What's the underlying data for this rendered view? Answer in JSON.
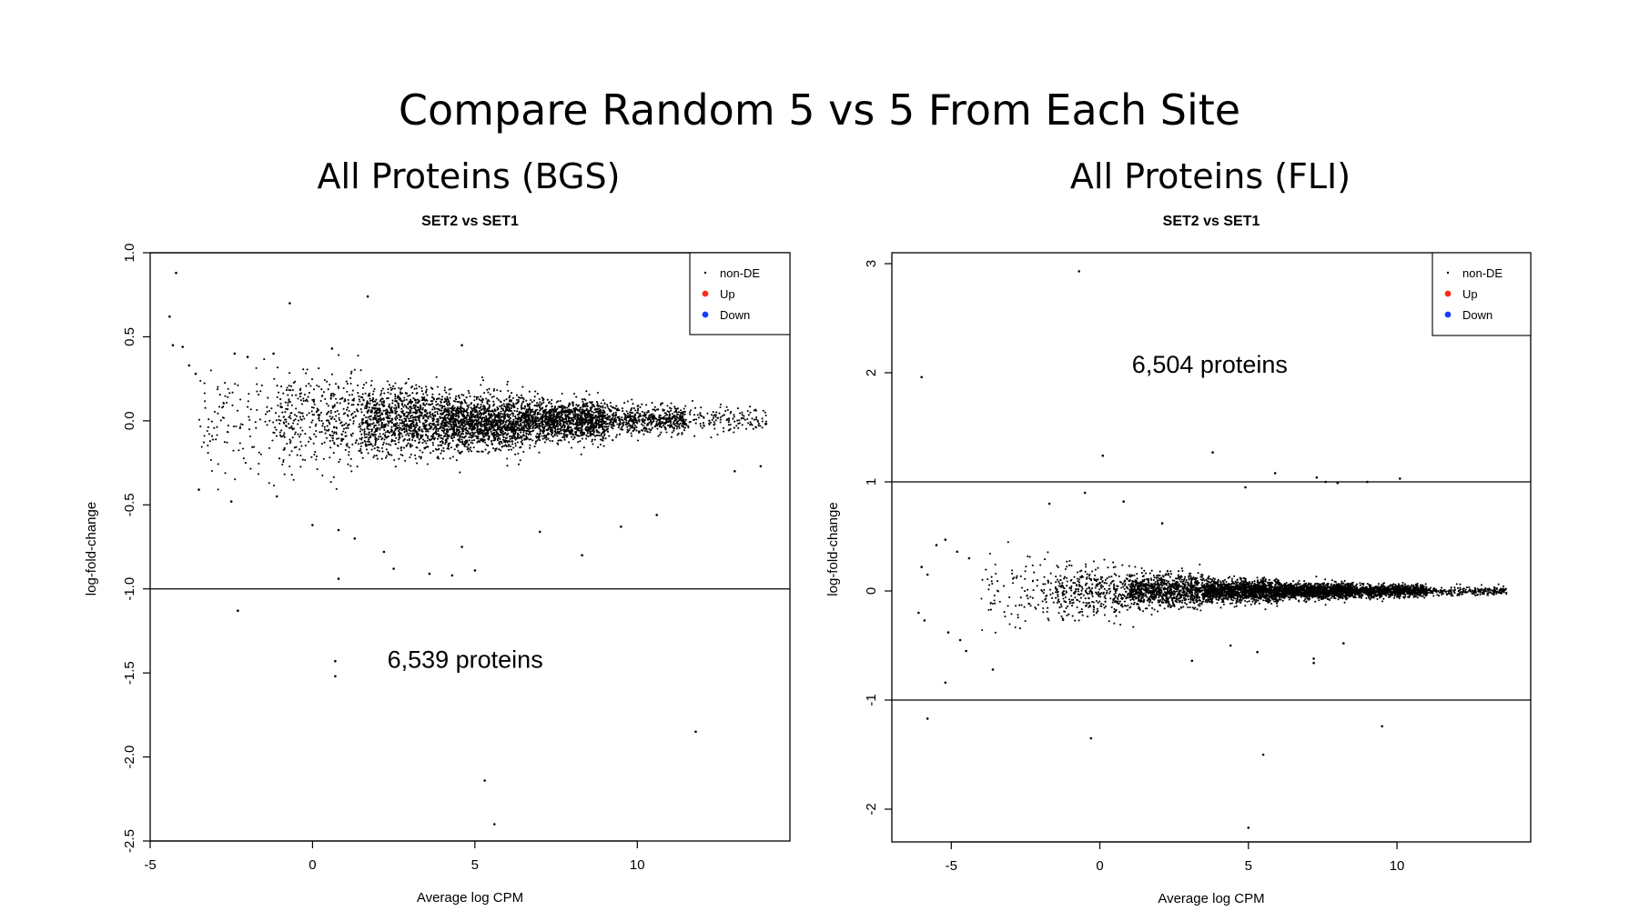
{
  "slide": {
    "title": "Compare Random 5 vs 5 From Each Site"
  },
  "chart_data": [
    {
      "type": "scatter",
      "panel_title": "All Proteins (BGS)",
      "title": "SET2 vs SET1",
      "xlabel": "Average log CPM",
      "ylabel": "log-fold-change",
      "xlim": [
        -5,
        14.5
      ],
      "ylim": [
        -2.5,
        1.0
      ],
      "xticks": [
        -5,
        0,
        5,
        10
      ],
      "xtick_labels": [
        "-5",
        "0",
        "5",
        "10"
      ],
      "yticks": [
        -2.5,
        -2.0,
        -1.5,
        -1.0,
        -0.5,
        0.0,
        0.5,
        1.0
      ],
      "ytick_labels": [
        "-2.5",
        "-2.0",
        "-1.5",
        "-1.0",
        "-0.5",
        "0.0",
        "0.5",
        "1.0"
      ],
      "threshold_lines": [
        -1.0,
        1.0
      ],
      "legend": {
        "placement": "top-right",
        "entries": [
          {
            "label": "non-DE",
            "color": "#000000"
          },
          {
            "label": "Up",
            "color": "#ff2a1a"
          },
          {
            "label": "Down",
            "color": "#1a3cff"
          }
        ]
      },
      "annotation": "6,539 proteins",
      "annotation_at": [
        4.7,
        -1.47
      ],
      "protein_count": 6539,
      "series": [
        {
          "name": "non-DE",
          "color": "#000000",
          "bulk": [
            {
              "x_start": -3.5,
              "x_end": -1,
              "mean": 0.0,
              "sd": 0.17,
              "count": 130
            },
            {
              "x_start": -1,
              "x_end": 1.5,
              "mean": 0.0,
              "sd": 0.14,
              "count": 400
            },
            {
              "x_start": 1.5,
              "x_end": 4,
              "mean": 0.0,
              "sd": 0.1,
              "count": 1000
            },
            {
              "x_start": 4,
              "x_end": 6.5,
              "mean": -0.01,
              "sd": 0.08,
              "count": 1400
            },
            {
              "x_start": 6.5,
              "x_end": 9,
              "mean": 0.0,
              "sd": 0.06,
              "count": 1300
            },
            {
              "x_start": 9,
              "x_end": 11.5,
              "mean": 0.01,
              "sd": 0.045,
              "count": 550
            },
            {
              "x_start": 11.5,
              "x_end": 14,
              "mean": 0.01,
              "sd": 0.035,
              "count": 140
            }
          ],
          "outliers": [
            [
              -4.2,
              0.88
            ],
            [
              -4.4,
              0.62
            ],
            [
              -4.3,
              0.45
            ],
            [
              -4.0,
              0.44
            ],
            [
              -3.8,
              0.33
            ],
            [
              -3.6,
              0.28
            ],
            [
              -0.7,
              0.7
            ],
            [
              1.7,
              0.74
            ],
            [
              4.6,
              0.45
            ],
            [
              -2.4,
              0.4
            ],
            [
              -2.0,
              0.38
            ],
            [
              -1.2,
              0.4
            ],
            [
              0.6,
              0.43
            ],
            [
              -3.5,
              -0.41
            ],
            [
              -2.5,
              -0.48
            ],
            [
              -1.1,
              -0.45
            ],
            [
              0.0,
              -0.62
            ],
            [
              0.8,
              -0.65
            ],
            [
              1.3,
              -0.7
            ],
            [
              2.2,
              -0.78
            ],
            [
              2.5,
              -0.88
            ],
            [
              3.6,
              -0.91
            ],
            [
              4.3,
              -0.92
            ],
            [
              4.6,
              -0.75
            ],
            [
              5.0,
              -0.89
            ],
            [
              7.0,
              -0.66
            ],
            [
              8.3,
              -0.8
            ],
            [
              9.5,
              -0.63
            ],
            [
              10.6,
              -0.56
            ],
            [
              0.8,
              -0.94
            ],
            [
              -2.3,
              -1.13
            ],
            [
              0.7,
              -1.43
            ],
            [
              0.7,
              -1.52
            ],
            [
              5.3,
              -2.14
            ],
            [
              5.6,
              -2.4
            ],
            [
              11.8,
              -1.85
            ],
            [
              13.0,
              -0.3
            ],
            [
              13.8,
              -0.27
            ]
          ]
        },
        {
          "name": "Up",
          "color": "#ff2a1a",
          "points": []
        },
        {
          "name": "Down",
          "color": "#1a3cff",
          "points": []
        }
      ]
    },
    {
      "type": "scatter",
      "panel_title": "All Proteins (FLI)",
      "title": "SET2 vs SET1",
      "xlabel": "Average log CPM",
      "ylabel": "log-fold-change",
      "xlim": [
        -7,
        14.5
      ],
      "ylim": [
        -2.4,
        3.1
      ],
      "xticks": [
        -5,
        0,
        5,
        10
      ],
      "xtick_labels": [
        "-5",
        "0",
        "5",
        "10"
      ],
      "yticks": [
        -2,
        -1,
        0,
        1,
        2,
        3
      ],
      "ytick_labels": [
        "-2",
        "-1",
        "0",
        "1",
        "2",
        "3"
      ],
      "threshold_lines": [
        -1,
        1
      ],
      "legend": {
        "placement": "top-right",
        "entries": [
          {
            "label": "non-DE",
            "color": "#000000"
          },
          {
            "label": "Up",
            "color": "#ff2a1a"
          },
          {
            "label": "Down",
            "color": "#1a3cff"
          }
        ]
      },
      "annotation": "6,504 proteins",
      "annotation_at": [
        3.7,
        2.0
      ],
      "protein_count": 6504,
      "series": [
        {
          "name": "non-DE",
          "color": "#000000",
          "bulk": [
            {
              "x_start": -4,
              "x_end": -1.5,
              "mean": 0.0,
              "sd": 0.16,
              "count": 110
            },
            {
              "x_start": -1.5,
              "x_end": 1,
              "mean": 0.0,
              "sd": 0.12,
              "count": 380
            },
            {
              "x_start": 1,
              "x_end": 3.5,
              "mean": 0.0,
              "sd": 0.075,
              "count": 950
            },
            {
              "x_start": 3.5,
              "x_end": 6,
              "mean": 0.0,
              "sd": 0.05,
              "count": 1400
            },
            {
              "x_start": 6,
              "x_end": 8.5,
              "mean": 0.0,
              "sd": 0.035,
              "count": 1350
            },
            {
              "x_start": 8.5,
              "x_end": 11,
              "mean": 0.0,
              "sd": 0.028,
              "count": 900
            },
            {
              "x_start": 11,
              "x_end": 13.7,
              "mean": 0.0,
              "sd": 0.02,
              "count": 230
            }
          ],
          "outliers": [
            [
              -0.7,
              2.93
            ],
            [
              -6.0,
              1.96
            ],
            [
              0.1,
              1.24
            ],
            [
              3.8,
              1.27
            ],
            [
              5.9,
              1.08
            ],
            [
              7.3,
              1.04
            ],
            [
              7.6,
              1.0
            ],
            [
              8.0,
              0.99
            ],
            [
              9.0,
              1.0
            ],
            [
              10.1,
              1.03
            ],
            [
              4.9,
              0.95
            ],
            [
              -0.5,
              0.9
            ],
            [
              -1.7,
              0.8
            ],
            [
              0.8,
              0.82
            ],
            [
              2.1,
              0.62
            ],
            [
              -5.2,
              0.47
            ],
            [
              -5.5,
              0.42
            ],
            [
              -4.8,
              0.36
            ],
            [
              -4.4,
              0.3
            ],
            [
              -6.0,
              0.22
            ],
            [
              -5.8,
              0.15
            ],
            [
              -6.1,
              -0.2
            ],
            [
              -5.9,
              -0.27
            ],
            [
              -5.1,
              -0.38
            ],
            [
              -4.7,
              -0.45
            ],
            [
              -4.5,
              -0.55
            ],
            [
              -3.6,
              -0.72
            ],
            [
              -5.2,
              -0.84
            ],
            [
              -5.8,
              -1.17
            ],
            [
              -0.3,
              -1.35
            ],
            [
              5.5,
              -1.5
            ],
            [
              5.0,
              -2.17
            ],
            [
              9.5,
              -1.24
            ],
            [
              7.2,
              -0.62
            ],
            [
              7.2,
              -0.66
            ],
            [
              3.1,
              -0.64
            ],
            [
              8.2,
              -0.48
            ],
            [
              4.4,
              -0.5
            ],
            [
              5.3,
              -0.56
            ]
          ]
        },
        {
          "name": "Up",
          "color": "#ff2a1a",
          "points": []
        },
        {
          "name": "Down",
          "color": "#1a3cff",
          "points": []
        }
      ]
    }
  ]
}
